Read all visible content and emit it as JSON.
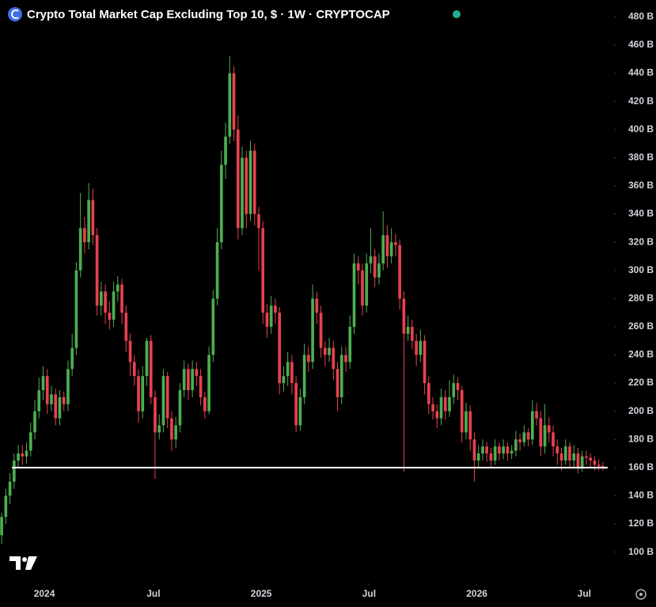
{
  "chart_data": {
    "type": "candlestick",
    "title": "Crypto Total Market Cap Excluding Top 10, $ · 1W · CRYPTOCAP",
    "up_color": "#4caf50",
    "down_color": "#e8414f",
    "open": [
      112,
      125,
      140,
      150,
      165,
      170,
      168,
      172,
      185,
      200,
      215,
      225,
      205,
      212,
      195,
      210,
      205,
      230,
      245,
      300,
      330,
      320,
      350,
      325,
      275,
      285,
      270,
      265,
      285,
      290,
      270,
      250,
      235,
      225,
      200,
      225,
      250,
      210,
      185,
      190,
      225,
      195,
      180,
      190,
      215,
      230,
      215,
      230,
      225,
      210,
      200,
      240,
      280,
      320,
      375,
      395,
      440,
      400,
      330,
      380,
      340,
      385,
      340,
      330,
      270,
      260,
      275,
      270,
      220,
      225,
      235,
      220,
      190,
      210,
      240,
      235,
      280,
      270,
      245,
      240,
      245,
      230,
      210,
      240,
      235,
      260,
      305,
      300,
      275,
      305,
      310,
      295,
      305,
      325,
      310,
      320,
      318,
      280,
      255,
      260,
      250,
      240,
      250,
      220,
      205,
      200,
      195,
      210,
      200,
      210,
      220,
      215,
      185,
      200,
      180,
      165,
      170,
      175,
      170,
      165,
      175,
      170,
      175,
      170,
      172,
      180,
      178,
      185,
      180,
      200,
      195,
      175,
      190,
      185,
      175,
      170,
      165,
      175,
      165,
      170,
      160,
      168,
      167,
      165,
      162,
      161
    ],
    "high": [
      128,
      145,
      156,
      170,
      176,
      176,
      178,
      192,
      208,
      224,
      232,
      230,
      218,
      216,
      215,
      214,
      236,
      255,
      306,
      355,
      338,
      362,
      358,
      330,
      292,
      290,
      278,
      292,
      296,
      294,
      275,
      255,
      240,
      230,
      232,
      252,
      254,
      215,
      198,
      230,
      228,
      200,
      196,
      220,
      236,
      234,
      236,
      235,
      230,
      214,
      246,
      286,
      330,
      385,
      405,
      452,
      445,
      410,
      388,
      385,
      392,
      390,
      345,
      335,
      276,
      282,
      280,
      274,
      232,
      242,
      240,
      225,
      216,
      248,
      246,
      290,
      285,
      275,
      250,
      252,
      250,
      235,
      246,
      246,
      268,
      312,
      310,
      305,
      312,
      330,
      315,
      312,
      342,
      332,
      330,
      326,
      322,
      285,
      268,
      265,
      255,
      258,
      254,
      225,
      210,
      205,
      216,
      215,
      222,
      226,
      224,
      218,
      206,
      204,
      185,
      176,
      180,
      178,
      174,
      180,
      178,
      180,
      178,
      176,
      186,
      184,
      190,
      188,
      208,
      206,
      200,
      205,
      196,
      190,
      180,
      174,
      180,
      178,
      176,
      174,
      172,
      172,
      170,
      168,
      166,
      164
    ],
    "low": [
      106,
      120,
      134,
      145,
      160,
      162,
      163,
      168,
      180,
      195,
      208,
      198,
      200,
      190,
      190,
      200,
      200,
      225,
      240,
      295,
      312,
      315,
      318,
      268,
      268,
      262,
      258,
      260,
      278,
      262,
      242,
      225,
      218,
      192,
      195,
      218,
      205,
      152,
      180,
      185,
      188,
      172,
      174,
      185,
      210,
      208,
      210,
      218,
      204,
      195,
      198,
      235,
      275,
      315,
      365,
      390,
      392,
      322,
      325,
      330,
      335,
      332,
      300,
      262,
      252,
      255,
      262,
      212,
      214,
      218,
      212,
      185,
      186,
      205,
      228,
      230,
      262,
      238,
      232,
      235,
      222,
      200,
      205,
      228,
      230,
      255,
      290,
      268,
      270,
      298,
      288,
      290,
      300,
      302,
      305,
      310,
      272,
      157,
      250,
      244,
      232,
      235,
      212,
      198,
      194,
      188,
      190,
      194,
      196,
      205,
      208,
      178,
      180,
      172,
      150,
      160,
      165,
      164,
      160,
      162,
      165,
      166,
      165,
      166,
      168,
      172,
      175,
      175,
      176,
      190,
      168,
      170,
      178,
      168,
      162,
      158,
      162,
      160,
      160,
      156,
      157,
      162,
      160,
      158,
      158,
      158
    ],
    "close": [
      125,
      140,
      150,
      165,
      170,
      168,
      172,
      185,
      200,
      215,
      225,
      205,
      212,
      195,
      210,
      205,
      230,
      245,
      300,
      330,
      320,
      350,
      325,
      275,
      285,
      270,
      265,
      285,
      290,
      270,
      250,
      235,
      225,
      200,
      225,
      250,
      210,
      185,
      190,
      225,
      195,
      180,
      190,
      215,
      230,
      215,
      230,
      225,
      210,
      200,
      240,
      280,
      320,
      375,
      395,
      440,
      400,
      330,
      380,
      340,
      385,
      340,
      330,
      270,
      260,
      275,
      270,
      220,
      225,
      235,
      220,
      190,
      210,
      240,
      235,
      280,
      270,
      245,
      240,
      245,
      230,
      210,
      240,
      235,
      260,
      305,
      300,
      275,
      305,
      310,
      295,
      305,
      325,
      310,
      320,
      318,
      280,
      255,
      260,
      250,
      240,
      250,
      220,
      205,
      200,
      195,
      210,
      200,
      210,
      220,
      215,
      185,
      200,
      180,
      165,
      170,
      175,
      170,
      165,
      175,
      170,
      175,
      170,
      172,
      180,
      178,
      185,
      180,
      200,
      195,
      175,
      190,
      185,
      175,
      170,
      165,
      175,
      165,
      170,
      160,
      168,
      167,
      165,
      162,
      161,
      160
    ],
    "horizontal_line": {
      "value": 160,
      "color": "#ffffff"
    },
    "ylim": [
      79,
      492
    ],
    "yticks": [
      {
        "value": 100,
        "label": "100 B"
      },
      {
        "value": 120,
        "label": "120 B"
      },
      {
        "value": 140,
        "label": "140 B"
      },
      {
        "value": 160,
        "label": "160 B"
      },
      {
        "value": 180,
        "label": "180 B"
      },
      {
        "value": 200,
        "label": "200 B"
      },
      {
        "value": 220,
        "label": "220 B"
      },
      {
        "value": 240,
        "label": "240 B"
      },
      {
        "value": 260,
        "label": "260 B"
      },
      {
        "value": 280,
        "label": "280 B"
      },
      {
        "value": 300,
        "label": "300 B"
      },
      {
        "value": 320,
        "label": "320 B"
      },
      {
        "value": 340,
        "label": "340 B"
      },
      {
        "value": 360,
        "label": "360 B"
      },
      {
        "value": 380,
        "label": "380 B"
      },
      {
        "value": 400,
        "label": "400 B"
      },
      {
        "value": 420,
        "label": "420 B"
      },
      {
        "value": 440,
        "label": "440 B"
      },
      {
        "value": 460,
        "label": "460 B"
      },
      {
        "value": 480,
        "label": "480 B"
      }
    ],
    "xlim": [
      -0.4,
      147.5
    ],
    "xticks": [
      {
        "value": 10.3,
        "label": "2024"
      },
      {
        "value": 36.6,
        "label": "Jul"
      },
      {
        "value": 62.6,
        "label": "2025"
      },
      {
        "value": 88.6,
        "label": "Jul"
      },
      {
        "value": 114.6,
        "label": "2026"
      },
      {
        "value": 140.5,
        "label": "Jul"
      }
    ]
  }
}
